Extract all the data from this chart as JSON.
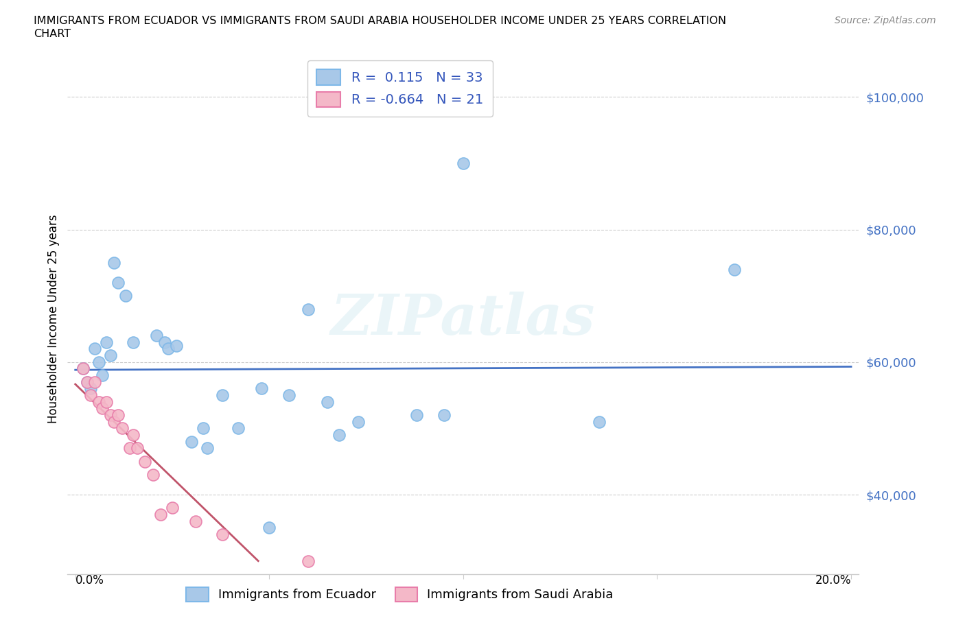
{
  "title": "IMMIGRANTS FROM ECUADOR VS IMMIGRANTS FROM SAUDI ARABIA HOUSEHOLDER INCOME UNDER 25 YEARS CORRELATION\nCHART",
  "source": "Source: ZipAtlas.com",
  "ylabel": "Householder Income Under 25 years",
  "watermark": "ZIPatlas",
  "ecuador_color": "#A8C8E8",
  "ecuador_edge_color": "#7EB8E8",
  "saudi_color": "#F4B8C8",
  "saudi_edge_color": "#E87DAA",
  "ecuador_line_color": "#4472C4",
  "saudi_line_color": "#C0546A",
  "ecuador_R": 0.115,
  "ecuador_N": 33,
  "saudi_R": -0.664,
  "saudi_N": 21,
  "xlim": [
    -0.002,
    0.202
  ],
  "ylim": [
    28000,
    105000
  ],
  "yticks": [
    40000,
    60000,
    80000,
    100000
  ],
  "ytick_labels": [
    "$40,000",
    "$60,000",
    "$80,000",
    "$100,000"
  ],
  "xtick_positions": [
    0.0,
    0.05,
    0.1,
    0.15,
    0.2
  ],
  "ecuador_points": [
    [
      0.002,
      59000
    ],
    [
      0.003,
      57000
    ],
    [
      0.004,
      56000
    ],
    [
      0.005,
      62000
    ],
    [
      0.006,
      60000
    ],
    [
      0.007,
      58000
    ],
    [
      0.008,
      63000
    ],
    [
      0.009,
      61000
    ],
    [
      0.01,
      75000
    ],
    [
      0.011,
      72000
    ],
    [
      0.013,
      70000
    ],
    [
      0.015,
      63000
    ],
    [
      0.021,
      64000
    ],
    [
      0.023,
      63000
    ],
    [
      0.024,
      62000
    ],
    [
      0.026,
      62500
    ],
    [
      0.03,
      48000
    ],
    [
      0.033,
      50000
    ],
    [
      0.034,
      47000
    ],
    [
      0.038,
      55000
    ],
    [
      0.042,
      50000
    ],
    [
      0.048,
      56000
    ],
    [
      0.055,
      55000
    ],
    [
      0.06,
      68000
    ],
    [
      0.065,
      54000
    ],
    [
      0.068,
      49000
    ],
    [
      0.073,
      51000
    ],
    [
      0.088,
      52000
    ],
    [
      0.05,
      35000
    ],
    [
      0.095,
      52000
    ],
    [
      0.1,
      90000
    ],
    [
      0.135,
      51000
    ],
    [
      0.17,
      74000
    ]
  ],
  "saudi_points": [
    [
      0.002,
      59000
    ],
    [
      0.003,
      57000
    ],
    [
      0.004,
      55000
    ],
    [
      0.005,
      57000
    ],
    [
      0.006,
      54000
    ],
    [
      0.007,
      53000
    ],
    [
      0.008,
      54000
    ],
    [
      0.009,
      52000
    ],
    [
      0.01,
      51000
    ],
    [
      0.011,
      52000
    ],
    [
      0.012,
      50000
    ],
    [
      0.014,
      47000
    ],
    [
      0.015,
      49000
    ],
    [
      0.016,
      47000
    ],
    [
      0.018,
      45000
    ],
    [
      0.02,
      43000
    ],
    [
      0.022,
      37000
    ],
    [
      0.025,
      38000
    ],
    [
      0.031,
      36000
    ],
    [
      0.038,
      34000
    ],
    [
      0.06,
      30000
    ]
  ]
}
